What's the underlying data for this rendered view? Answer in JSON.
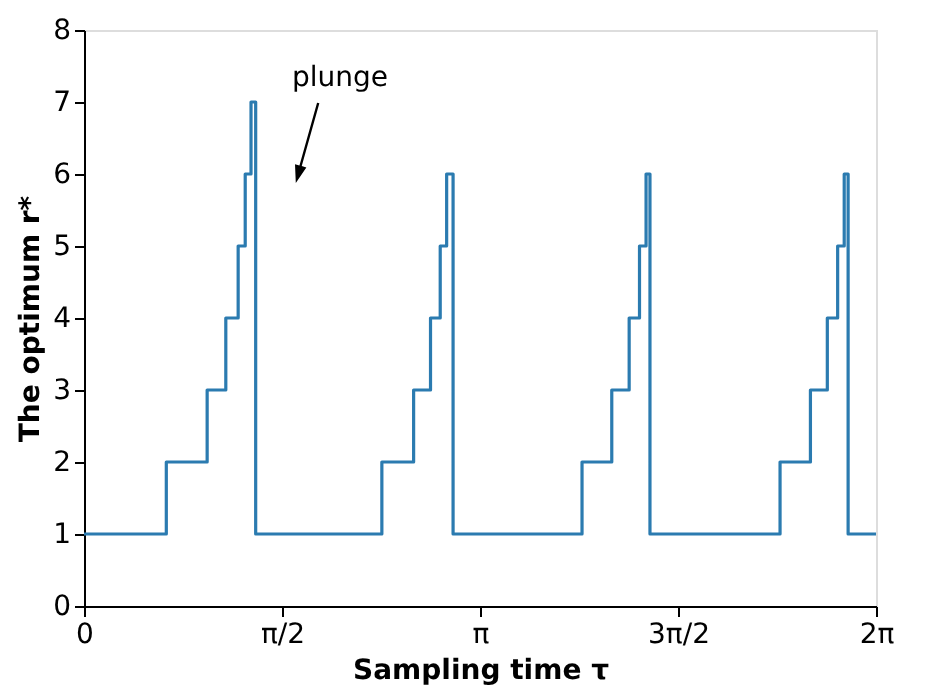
{
  "chart_data": {
    "type": "step",
    "xlabel": "Sampling time τ",
    "ylabel": "The optimum r*",
    "x": [
      0,
      0.653,
      0.977,
      1.125,
      1.223,
      1.279,
      1.325,
      1.362,
      2.363,
      2.615,
      2.749,
      2.826,
      2.877,
      2.928,
      3.951,
      4.187,
      4.325,
      4.407,
      4.459,
      4.49,
      5.522,
      5.763,
      5.897,
      5.979,
      6.031,
      6.062,
      6.2832
    ],
    "series": [
      {
        "color": "#2b7bb0",
        "values": [
          1,
          2,
          3,
          4,
          5,
          6,
          7,
          1,
          2,
          3,
          4,
          5,
          6,
          1,
          2,
          3,
          4,
          5,
          6,
          1,
          2,
          3,
          4,
          5,
          6,
          1,
          1
        ]
      }
    ],
    "xlim": [
      0,
      6.2832
    ],
    "xticks": [
      0,
      {
        "value": 1.5708,
        "label": "π/2"
      },
      {
        "value": 3.1416,
        "label": "π"
      },
      {
        "value": 4.7124,
        "label": "3π/2"
      },
      {
        "value": 6.2832,
        "label": "2π"
      }
    ],
    "ylim": [
      0,
      8
    ],
    "yticks": [
      0,
      1,
      2,
      3,
      4,
      5,
      6,
      7,
      8
    ],
    "grid": false,
    "line_style": "solid",
    "annotations": [
      "plunge"
    ]
  }
}
